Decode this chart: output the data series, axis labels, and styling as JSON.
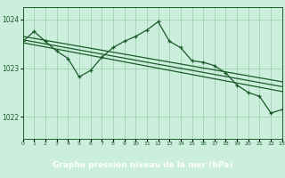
{
  "xlabel": "Graphe pression niveau de la mer (hPa)",
  "bg_color": "#cceedd",
  "grid_color": "#99ccaa",
  "line_color": "#1a5c28",
  "footer_bg": "#2a6e35",
  "footer_text_color": "#ffffff",
  "xlim": [
    0,
    23
  ],
  "ylim": [
    1021.55,
    1024.25
  ],
  "yticks": [
    1022,
    1023,
    1024
  ],
  "xtick_labels": [
    "0",
    "1",
    "2",
    "3",
    "4",
    "5",
    "6",
    "7",
    "8",
    "9",
    "10",
    "11",
    "12",
    "13",
    "14",
    "15",
    "16",
    "17",
    "18",
    "19",
    "20",
    "21",
    "22",
    "23"
  ],
  "main_series_x": [
    0,
    1,
    2,
    3,
    4,
    5,
    6,
    7,
    8,
    9,
    10,
    11,
    12,
    13,
    14,
    15,
    16,
    17,
    18,
    19,
    20,
    21,
    22,
    23
  ],
  "main_series_y": [
    1023.55,
    1023.75,
    1023.55,
    1023.35,
    1023.2,
    1022.82,
    1022.95,
    1023.22,
    1023.42,
    1023.55,
    1023.65,
    1023.78,
    1023.95,
    1023.55,
    1023.42,
    1023.15,
    1023.12,
    1023.05,
    1022.9,
    1022.65,
    1022.5,
    1022.42,
    1022.08,
    1022.15
  ],
  "trend1_x": [
    0,
    23
  ],
  "trend1_y": [
    1023.65,
    1022.72
  ],
  "trend2_x": [
    0,
    23
  ],
  "trend2_y": [
    1023.58,
    1022.62
  ],
  "trend3_x": [
    0,
    23
  ],
  "trend3_y": [
    1023.52,
    1022.52
  ]
}
